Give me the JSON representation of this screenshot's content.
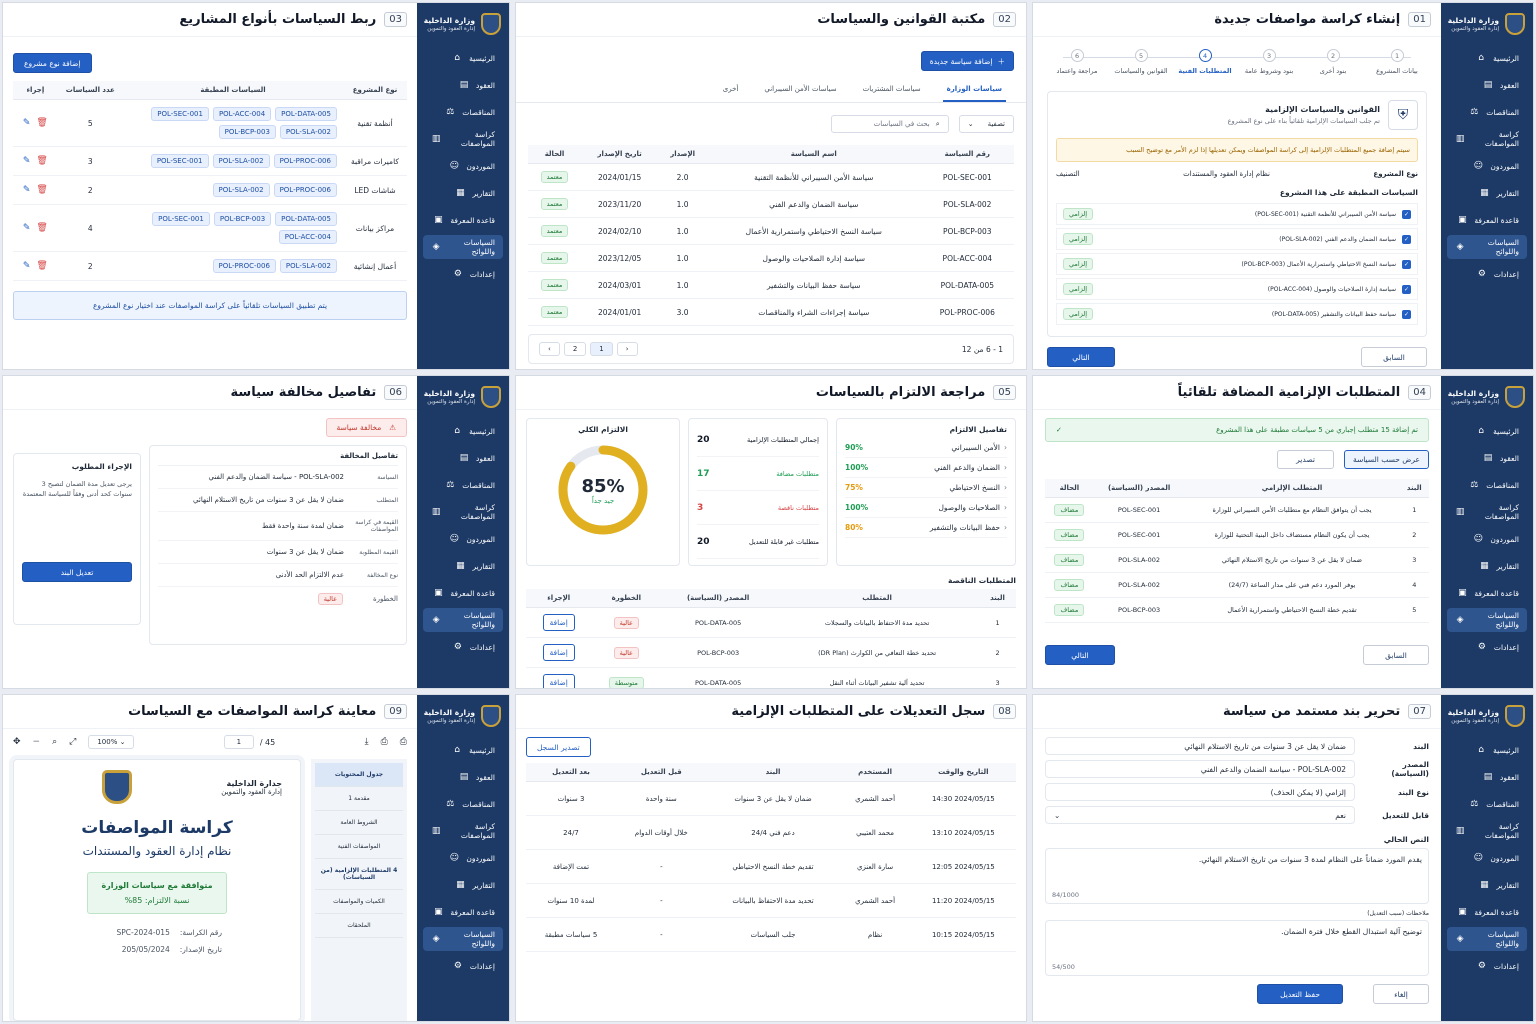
{
  "sidebar": {
    "org_name": "وزارة الداخلية",
    "org_sub": "إدارة العقود والتموين",
    "items": [
      {
        "label": "الرئيسية",
        "icon": "home-icon",
        "glyph": "⌂"
      },
      {
        "label": "العقود",
        "icon": "document-icon",
        "glyph": "▤"
      },
      {
        "label": "المناقصات",
        "icon": "gavel-icon",
        "glyph": "⚖"
      },
      {
        "label": "كراسة المواصفات",
        "icon": "file-spec-icon",
        "glyph": "▥"
      },
      {
        "label": "الموردون",
        "icon": "users-icon",
        "glyph": "☺"
      },
      {
        "label": "التقارير",
        "icon": "chart-icon",
        "glyph": "▦"
      },
      {
        "label": "قاعدة المعرفة",
        "icon": "book-icon",
        "glyph": "▣"
      },
      {
        "label": "السياسات واللوائح",
        "icon": "policy-icon",
        "glyph": "◈"
      },
      {
        "label": "إعدادات",
        "icon": "gear-icon",
        "glyph": "⚙"
      }
    ]
  },
  "s01": {
    "num": "01",
    "title": "إنشاء كراسة مواصفات جديدة",
    "steps": [
      {
        "n": "1",
        "label": "بيانات المشروع"
      },
      {
        "n": "2",
        "label": "بنود أخرى"
      },
      {
        "n": "3",
        "label": "بنود وشروط عامة"
      },
      {
        "n": "4",
        "label": "المتطلبات الفنية"
      },
      {
        "n": "5",
        "label": "القوانين والسياسات"
      },
      {
        "n": "6",
        "label": "مراجعة واعتماد"
      }
    ],
    "card_title": "القوانين والسياسات الإلزامية",
    "card_sub": "تم جلب السياسات الإلزامية تلقائياً بناء على نوع المشروع",
    "warning": "سيتم إضافة جميع المتطلبات الإلزامية إلى كراسة المواصفات ويمكن تعديلها إذا لزم الأمر مع توضيح السبب",
    "project_type_label": "نوع المشروع",
    "project_type_value": "نظام إدارة العقود والمستندات",
    "classification_label": "التصنيف",
    "applied_title": "السياسات المطبقة على هذا المشروع",
    "policies": [
      {
        "name": "سياسة الأمن السيبراني للأنظمة التقنية (POL-SEC-001)",
        "tag": "إلزامي"
      },
      {
        "name": "سياسة الضمان والدعم الفني (POL-SLA-002)",
        "tag": "إلزامي"
      },
      {
        "name": "سياسة النسخ الاحتياطي واستمرارية الأعمال (POL-BCP-003)",
        "tag": "إلزامي"
      },
      {
        "name": "سياسة إدارة الصلاحيات والوصول (POL-ACC-004)",
        "tag": "إلزامي"
      },
      {
        "name": "سياسة حفظ البيانات والتشفير (POL-DATA-005)",
        "tag": "إلزامي"
      }
    ],
    "prev": "السابق",
    "next": "التالي"
  },
  "s02": {
    "num": "02",
    "title": "مكتبة القوانين والسياسات",
    "add_btn": "إضافة سياسة جديدة",
    "tabs": [
      "سياسات الوزارة",
      "سياسات المشتريات",
      "سياسات الأمن السيبراني",
      "أخرى"
    ],
    "filter": "تصفية",
    "search_placeholder": "بحث في السياسات",
    "headers": [
      "رقم السياسة",
      "اسم السياسة",
      "الإصدار",
      "تاريخ الإصدار",
      "الحالة"
    ],
    "rows": [
      [
        "POL-SEC-001",
        "سياسة الأمن السيبراني للأنظمة التقنية",
        "2.0",
        "2024/01/15",
        "معتمد"
      ],
      [
        "POL-SLA-002",
        "سياسة الضمان والدعم الفني",
        "1.0",
        "2023/11/20",
        "معتمد"
      ],
      [
        "POL-BCP-003",
        "سياسة النسخ الاحتياطي واستمرارية الأعمال",
        "1.0",
        "2024/02/10",
        "معتمد"
      ],
      [
        "POL-ACC-004",
        "سياسة إدارة الصلاحيات والوصول",
        "1.0",
        "2023/12/05",
        "معتمد"
      ],
      [
        "POL-DATA-005",
        "سياسة حفظ البيانات والتشفير",
        "1.0",
        "2024/03/01",
        "معتمد"
      ],
      [
        "POL-PROC-006",
        "سياسة إجراءات الشراء والمناقصات",
        "3.0",
        "2024/01/01",
        "معتمد"
      ]
    ],
    "pager_info": "1 - 6 من 12",
    "pages": [
      "1",
      "2"
    ]
  },
  "s03": {
    "num": "03",
    "title": "ربط السياسات بأنواع المشاريع",
    "add_btn": "إضافة نوع مشروع",
    "headers": [
      "نوع المشروع",
      "السياسات المطبقة",
      "عدد السياسات",
      "إجراء"
    ],
    "rows": [
      {
        "type": "أنظمة تقنية",
        "chips": [
          "POL-DATA-005",
          "POL-ACC-004",
          "POL-SEC-001",
          "POL-SLA-002",
          "POL-BCP-003"
        ],
        "count": "5"
      },
      {
        "type": "كاميرات مراقبة",
        "chips": [
          "POL-PROC-006",
          "POL-SLA-002",
          "POL-SEC-001"
        ],
        "count": "3"
      },
      {
        "type": "شاشات LED",
        "chips": [
          "POL-PROC-006",
          "POL-SLA-002"
        ],
        "count": "2"
      },
      {
        "type": "مراكز بيانات",
        "chips": [
          "POL-DATA-005",
          "POL-BCP-003",
          "POL-SEC-001",
          "POL-ACC-004"
        ],
        "count": "4"
      },
      {
        "type": "أعمال إنشائية",
        "chips": [
          "POL-SLA-002",
          "POL-PROC-006"
        ],
        "count": "2"
      }
    ],
    "note": "يتم تطبيق السياسات تلقائياً على كراسة المواصفات عند اختيار نوع المشروع"
  },
  "s04": {
    "num": "04",
    "title": "المتطلبات الإلزامية المضافة تلقائياً",
    "success": "تم إضافة 15 متطلب إجباري من 5 سياسات مطبقة على هذا المشروع",
    "view_btn": "عرض حسب السياسة",
    "export_btn": "تصدير",
    "headers": [
      "البند",
      "المتطلب الإلزامي",
      "المصدر (السياسة)",
      "الحالة"
    ],
    "rows": [
      [
        "1",
        "يجب أن يتوافق النظام مع متطلبات الأمن السيبراني للوزارة",
        "POL-SEC-001",
        "مضاف"
      ],
      [
        "2",
        "يجب أن يكون النظام مستضاف داخل البنية التحتية للوزارة",
        "POL-SEC-001",
        "مضاف"
      ],
      [
        "3",
        "ضمان لا يقل عن 3 سنوات من تاريخ الاستلام النهائي",
        "POL-SLA-002",
        "مضاف"
      ],
      [
        "4",
        "يوفر المورد دعم فني على مدار الساعة (24/7)",
        "POL-SLA-002",
        "مضاف"
      ],
      [
        "5",
        "تقديم خطة النسخ الاحتياطي واستمرارية الأعمال",
        "POL-BCP-003",
        "مضاف"
      ]
    ],
    "prev": "السابق",
    "next": "التالي"
  },
  "s05": {
    "num": "05",
    "title": "مراجعة الالتزام بالسياسات",
    "details_title": "تفاصيل الالتزام",
    "details": [
      {
        "name": "الأمن السيبراني",
        "pct": "90%",
        "color": "#1f9d55"
      },
      {
        "name": "الضمان والدعم الفني",
        "pct": "100%",
        "color": "#1f9d55"
      },
      {
        "name": "النسخ الاحتياطي",
        "pct": "75%",
        "color": "#e59a0b"
      },
      {
        "name": "الصلاحيات والوصول",
        "pct": "100%",
        "color": "#1f9d55"
      },
      {
        "name": "حفظ البيانات والتشفير",
        "pct": "80%",
        "color": "#e59a0b"
      }
    ],
    "stats": [
      {
        "label": "إجمالي المتطلبات الإلزامية",
        "value": "20",
        "color": "#111827"
      },
      {
        "label": "متطلبات مضافة",
        "value": "17",
        "color": "#1f9d55"
      },
      {
        "label": "متطلبات ناقصة",
        "value": "3",
        "color": "#d64545"
      },
      {
        "label": "متطلبات غير قابلة للتعديل",
        "value": "20",
        "color": "#111827"
      }
    ],
    "overall_title": "الالتزام الكلي",
    "overall_value": "85%",
    "overall_fraction": 0.85,
    "overall_label": "جيد جداً",
    "missing_title": "المتطلبات الناقصة",
    "headers": [
      "البند",
      "المتطلب",
      "المصدر (السياسة)",
      "الخطورة",
      "الإجراء"
    ],
    "rows": [
      [
        "1",
        "تحديد مدة الاحتفاظ بالبيانات والسجلات",
        "POL-DATA-005",
        "عالية",
        "إضافة"
      ],
      [
        "2",
        "تحديد خطة التعافي من الكوارث (DR Plan)",
        "POL-BCP-003",
        "عالية",
        "إضافة"
      ],
      [
        "3",
        "تحديد آلية تشفير البيانات أثناء النقل",
        "POL-DATA-005",
        "متوسطة",
        "إضافة"
      ]
    ]
  },
  "s06": {
    "num": "06",
    "title": "تفاصيل مخالفة سياسة",
    "alert": "مخالفة سياسة",
    "details_title": "تفاصيل المخالفة",
    "rows": [
      {
        "label": "السياسة",
        "value": "POL-SLA-002 - سياسة الضمان والدعم الفني"
      },
      {
        "label": "المتطلب",
        "value": "ضمان لا يقل عن 3 سنوات من تاريخ الاستلام النهائي"
      },
      {
        "label": "القيمة في كراسة المواصفات",
        "value": "ضمان لمدة سنة واحدة فقط"
      },
      {
        "label": "القيمة المطلوبة",
        "value": "ضمان لا يقل عن 3 سنوات"
      },
      {
        "label": "نوع المخالفة",
        "value": "عدم الالتزام الحد الأدنى"
      }
    ],
    "severity_label": "الخطورة",
    "severity_value": "عالية",
    "action_title": "الإجراء المطلوب",
    "action_text": "يرجى تعديل مدة الضمان لتصبح 3 سنوات كحد أدنى وفقاً للسياسة المعتمدة",
    "action_btn": "تعديل البند"
  },
  "s07": {
    "num": "07",
    "title": "تحرير بند مستمد من سياسة",
    "fields": [
      {
        "label": "البند",
        "value": "ضمان لا يقل عن 3 سنوات من تاريخ الاستلام النهائي"
      },
      {
        "label": "المصدر (السياسة)",
        "value": "POL-SLA-002 - سياسة الضمان والدعم الفني"
      },
      {
        "label": "نوع البند",
        "value": "إلزامي (لا يمكن الحذف)"
      },
      {
        "label": "قابل للتعديل",
        "value": "نعم"
      }
    ],
    "current_label": "النص الحالي",
    "current_text": "يقدم المورد ضماناً على النظام لمدة 3 سنوات من تاريخ الاستلام النهائي.",
    "current_count": "84/1000",
    "notes_label": "ملاحظات (سبب التعديل)",
    "notes_text": "توضيح آلية استبدال القطع خلال فترة الضمان.",
    "notes_count": "54/500",
    "save_btn": "حفظ التعديل",
    "cancel_btn": "إلغاء"
  },
  "s08": {
    "num": "08",
    "title": "سجل التعديلات على المتطلبات الإلزامية",
    "export_btn": "تصدير السجل",
    "headers": [
      "التاريخ والوقت",
      "المستخدم",
      "البند",
      "قبل التعديل",
      "بعد التعديل"
    ],
    "rows": [
      [
        "2024/05/15 14:30",
        "أحمد الشمري",
        "ضمان لا يقل عن 3 سنوات",
        "سنة واحدة",
        "3 سنوات"
      ],
      [
        "2024/05/15 13:10",
        "محمد العتيبي",
        "دعم فني 24/4",
        "خلال أوقات الدوام",
        "24/7"
      ],
      [
        "2024/05/15 12:05",
        "سارة العنزي",
        "تقديم خطة النسخ الاحتياطي",
        "-",
        "تمت الإضافة"
      ],
      [
        "2024/05/15 11:20",
        "أحمد الشمري",
        "تحديد مدة الاحتفاظ بالبيانات",
        "-",
        "لمدة 10 سنوات"
      ],
      [
        "2024/05/15 10:15",
        "نظام",
        "جلب السياسات",
        "-",
        "5 سياسات مطبقة"
      ]
    ]
  },
  "s09": {
    "num": "09",
    "title": "معاينة كراسة المواصفات مع السياسات",
    "zoom": "100%",
    "page_current": "1",
    "page_total": "/ 45",
    "toc": [
      "جدول المحتويات",
      "مقدمة 1",
      "الشروط العامة",
      "المواصفات الفنية",
      "4 المتطلبات الإلزامية (من السياسات)",
      "الكميات والمواصفات",
      "الملحقات"
    ],
    "doc_org": "جدارة الداخلية",
    "doc_org_sub": "إدارة العقود والتموين",
    "doc_title": "كراسة المواصفات",
    "doc_subtitle": "نظام إدارة العقود والمستندات",
    "doc_badge": "متوافقة مع سياسات الوزارة",
    "doc_compliance": "نسبة الالتزام: 85%",
    "doc_no_label": "رقم الكراسة:",
    "doc_no": "SPC-2024-015",
    "doc_date_label": "تاريخ الإصدار:",
    "doc_date": "205/05/2024"
  }
}
